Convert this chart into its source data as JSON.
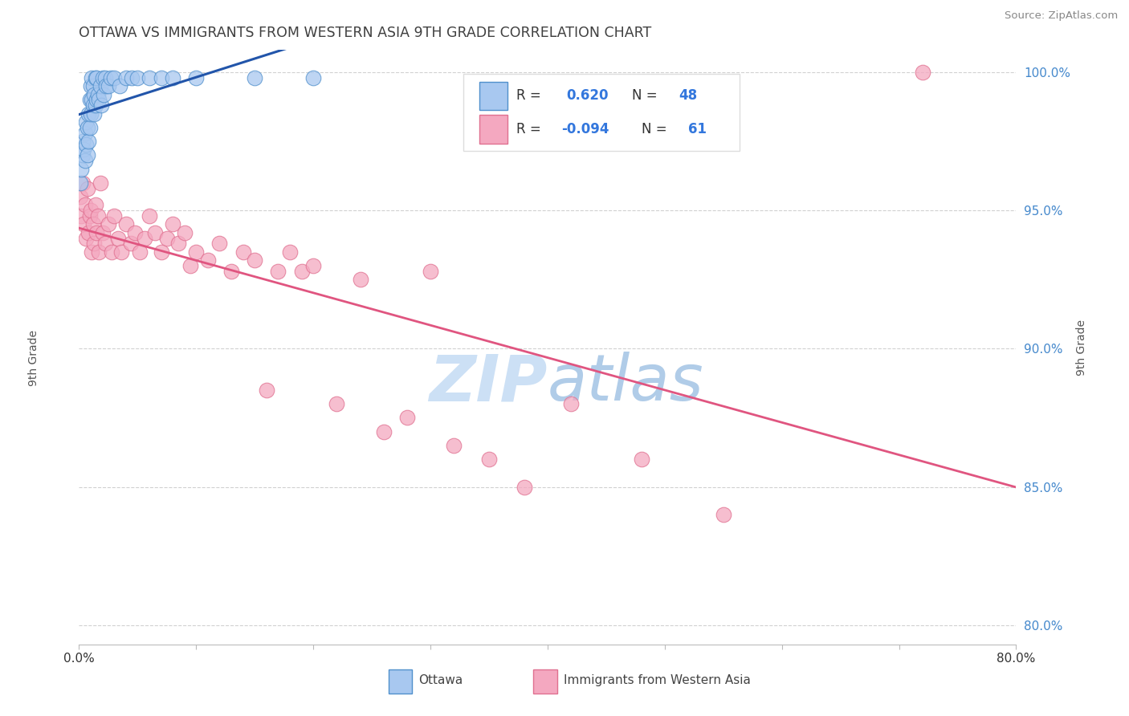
{
  "title": "OTTAWA VS IMMIGRANTS FROM WESTERN ASIA 9TH GRADE CORRELATION CHART",
  "source": "Source: ZipAtlas.com",
  "ylabel": "9th Grade",
  "xlim": [
    0.0,
    0.8
  ],
  "ylim": [
    0.793,
    1.008
  ],
  "yticks": [
    0.8,
    0.85,
    0.9,
    0.95,
    1.0
  ],
  "ytick_labels": [
    "80.0%",
    "85.0%",
    "90.0%",
    "95.0%",
    "100.0%"
  ],
  "xticks": [
    0.0,
    0.1,
    0.2,
    0.3,
    0.4,
    0.5,
    0.6,
    0.7,
    0.8
  ],
  "xtick_labels": [
    "0.0%",
    "",
    "",
    "",
    "",
    "",
    "",
    "",
    "80.0%"
  ],
  "ottawa_color": "#a8c8f0",
  "ottawa_edge": "#5090cc",
  "immigrants_color": "#f4a8c0",
  "immigrants_edge": "#e07090",
  "trend_blue": "#2255aa",
  "trend_pink": "#e05580",
  "grid_color": "#cccccc",
  "background": "#ffffff",
  "title_color": "#404040",
  "watermark_color": "#cce0f5",
  "ottawa_x": [
    0.001,
    0.002,
    0.003,
    0.003,
    0.004,
    0.005,
    0.005,
    0.006,
    0.006,
    0.007,
    0.007,
    0.008,
    0.008,
    0.009,
    0.009,
    0.01,
    0.01,
    0.011,
    0.011,
    0.012,
    0.012,
    0.013,
    0.013,
    0.014,
    0.014,
    0.015,
    0.015,
    0.016,
    0.017,
    0.018,
    0.019,
    0.02,
    0.021,
    0.022,
    0.023,
    0.025,
    0.027,
    0.03,
    0.035,
    0.04,
    0.045,
    0.05,
    0.06,
    0.07,
    0.08,
    0.1,
    0.15,
    0.2
  ],
  "ottawa_y": [
    0.96,
    0.965,
    0.97,
    0.975,
    0.972,
    0.968,
    0.978,
    0.974,
    0.982,
    0.97,
    0.98,
    0.975,
    0.985,
    0.98,
    0.99,
    0.985,
    0.995,
    0.99,
    0.998,
    0.988,
    0.995,
    0.985,
    0.992,
    0.988,
    0.998,
    0.99,
    0.998,
    0.992,
    0.99,
    0.995,
    0.988,
    0.998,
    0.992,
    0.998,
    0.995,
    0.995,
    0.998,
    0.998,
    0.995,
    0.998,
    0.998,
    0.998,
    0.998,
    0.998,
    0.998,
    0.998,
    0.998,
    0.998
  ],
  "immigrants_x": [
    0.001,
    0.002,
    0.003,
    0.004,
    0.005,
    0.006,
    0.007,
    0.008,
    0.009,
    0.01,
    0.011,
    0.012,
    0.013,
    0.014,
    0.015,
    0.016,
    0.017,
    0.018,
    0.02,
    0.022,
    0.025,
    0.028,
    0.03,
    0.033,
    0.036,
    0.04,
    0.044,
    0.048,
    0.052,
    0.056,
    0.06,
    0.065,
    0.07,
    0.075,
    0.08,
    0.085,
    0.09,
    0.095,
    0.1,
    0.11,
    0.12,
    0.13,
    0.14,
    0.15,
    0.16,
    0.17,
    0.18,
    0.19,
    0.2,
    0.22,
    0.24,
    0.26,
    0.28,
    0.3,
    0.32,
    0.35,
    0.38,
    0.42,
    0.48,
    0.55,
    0.72
  ],
  "immigrants_y": [
    0.955,
    0.948,
    0.96,
    0.945,
    0.952,
    0.94,
    0.958,
    0.942,
    0.948,
    0.95,
    0.935,
    0.945,
    0.938,
    0.952,
    0.942,
    0.948,
    0.935,
    0.96,
    0.942,
    0.938,
    0.945,
    0.935,
    0.948,
    0.94,
    0.935,
    0.945,
    0.938,
    0.942,
    0.935,
    0.94,
    0.948,
    0.942,
    0.935,
    0.94,
    0.945,
    0.938,
    0.942,
    0.93,
    0.935,
    0.932,
    0.938,
    0.928,
    0.935,
    0.932,
    0.885,
    0.928,
    0.935,
    0.928,
    0.93,
    0.88,
    0.925,
    0.87,
    0.875,
    0.928,
    0.865,
    0.86,
    0.85,
    0.88,
    0.86,
    0.84,
    1.0
  ]
}
